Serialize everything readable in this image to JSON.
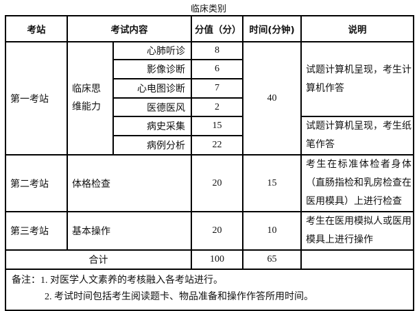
{
  "title": "临床类别",
  "headers": [
    "考站",
    "考试内容",
    "分值（分）",
    "时间(分钟)",
    "说明"
  ],
  "station1": {
    "name": "第一考站",
    "category": "临床思维能力",
    "items": [
      {
        "label": "心肺听诊",
        "score": "8"
      },
      {
        "label": "影像诊断",
        "score": "6"
      },
      {
        "label": "心电图诊断",
        "score": "7"
      },
      {
        "label": "医德医风",
        "score": "2"
      },
      {
        "label": "病史采集",
        "score": "15"
      },
      {
        "label": "病例分析",
        "score": "22"
      }
    ],
    "time": "40",
    "desc1": "试题计算机呈现，考生计算机作答",
    "desc2": "试题计算机呈现，考生纸笔作答"
  },
  "station2": {
    "name": "第二考站",
    "content": "体格检查",
    "score": "20",
    "time": "15",
    "desc": "考生在标准体检者身体（直肠指检和乳房检查在医用模具）上进行检查"
  },
  "station3": {
    "name": "第三考站",
    "content": "基本操作",
    "score": "20",
    "time": "10",
    "desc": "考生在医用模拟人或医用模具上进行操作"
  },
  "total": {
    "label": "合计",
    "score": "100",
    "time": "65"
  },
  "notes": {
    "line1": "备注：1. 对医学人文素养的考核融入各考站进行。",
    "line2": "2. 考试时间包括考生阅读题卡、物品准备和操作作答所用时间。"
  }
}
